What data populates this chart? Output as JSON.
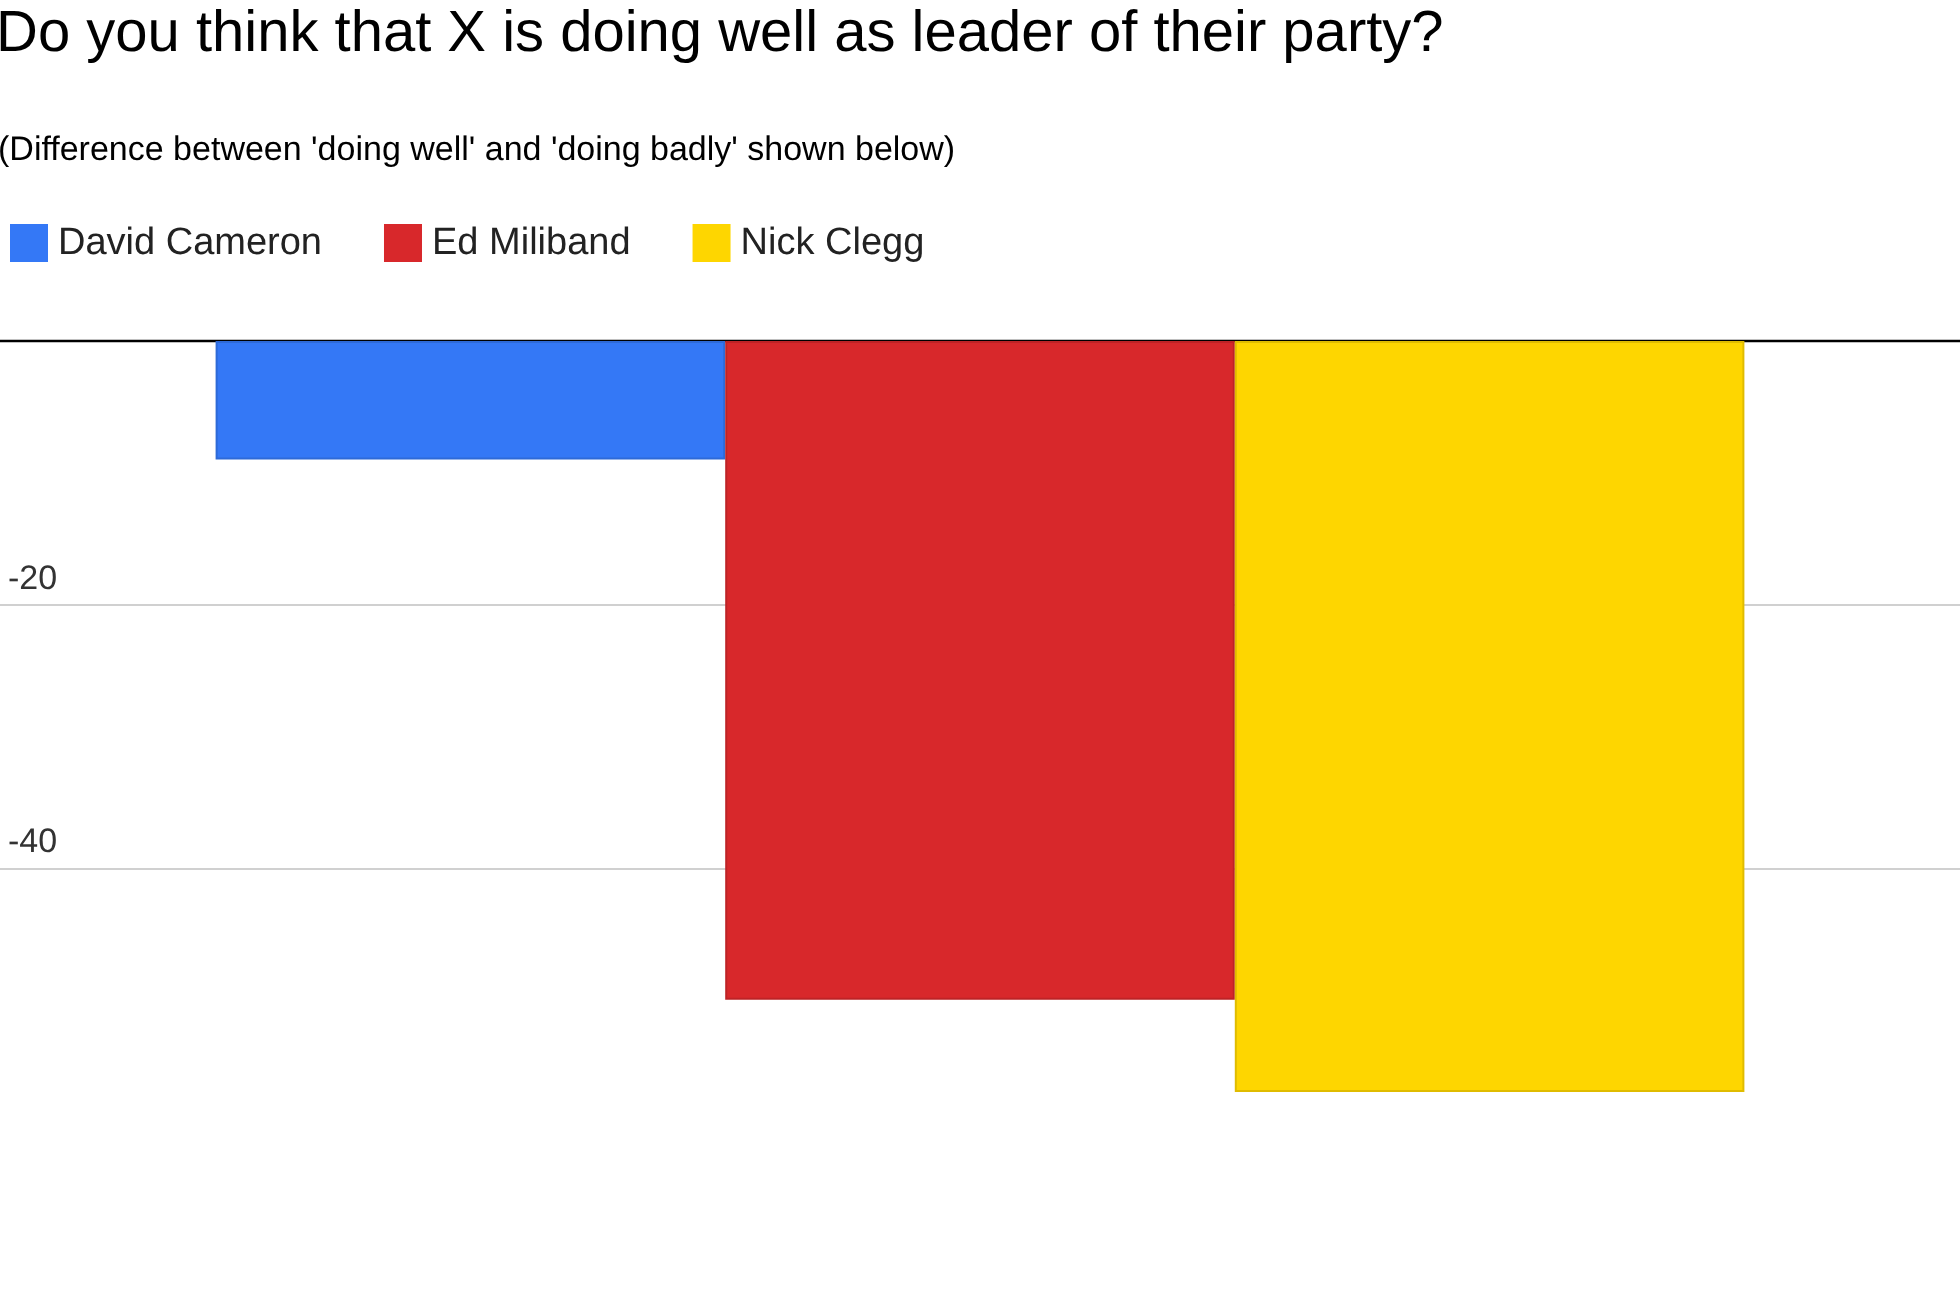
{
  "chart_data": {
    "type": "bar",
    "title": "Do you think that X is doing well as leader of their party?",
    "subtitle": "(Difference between 'doing well' and 'doing badly' shown below)",
    "categories": [
      null
    ],
    "series": [
      {
        "name": "David Cameron",
        "color": "#3478f6",
        "values": [
          -9
        ]
      },
      {
        "name": "Ed Miliband",
        "color": "#d8282b",
        "values": [
          -50
        ]
      },
      {
        "name": "Nick Clegg",
        "color": "#fed600",
        "values": [
          -57
        ]
      }
    ],
    "ylim": [
      -57,
      0
    ],
    "yticks": [
      -40,
      -20,
      {
        "value": 0,
        "label": null
      }
    ],
    "grid": "y",
    "legend": "top left"
  }
}
